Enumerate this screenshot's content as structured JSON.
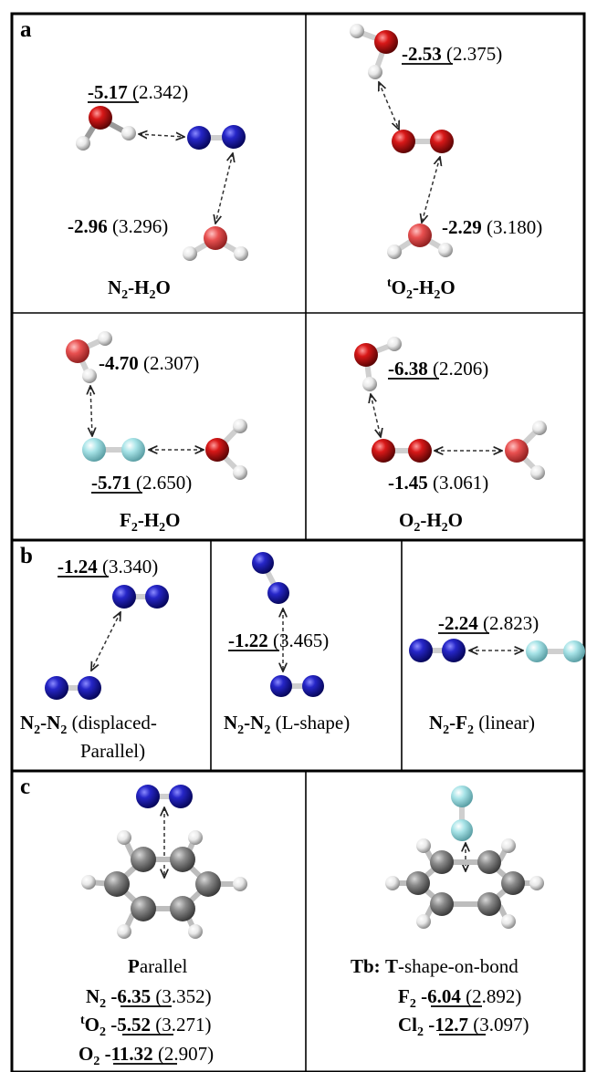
{
  "panels": {
    "a": {
      "label": "a",
      "cells": [
        {
          "name": "N₂-H₂O",
          "formula": {
            "parts": [
              "N",
              "2",
              "-H",
              "2",
              "O"
            ]
          },
          "top": {
            "energy": "-5.17",
            "distance": "(2.342)"
          },
          "bottom": {
            "energy": "-2.96",
            "distance": "(3.296)"
          }
        },
        {
          "name": "ᵗO₂-H₂O",
          "formula": {
            "pre": "t",
            "parts": [
              "O",
              "2",
              "-H",
              "2",
              "O"
            ]
          },
          "top": {
            "energy": "-2.53",
            "distance": "(2.375)"
          },
          "bottom": {
            "energy": "-2.29",
            "distance": "(3.180)"
          }
        },
        {
          "name": "F₂-H₂O",
          "formula": {
            "parts": [
              "F",
              "2",
              "-H",
              "2",
              "O"
            ]
          },
          "top": {
            "energy": "-4.70",
            "distance": "(2.307)"
          },
          "bottom": {
            "energy": "-5.71",
            "distance": "(2.650)"
          }
        },
        {
          "name": "O₂-H₂O",
          "formula": {
            "parts": [
              "O",
              "2",
              "-H",
              "2",
              "O"
            ]
          },
          "top": {
            "energy": "-6.38",
            "distance": "(2.206)"
          },
          "bottom": {
            "energy": "-1.45",
            "distance": "(3.061)"
          }
        }
      ]
    },
    "b": {
      "label": "b",
      "cells": [
        {
          "formula": [
            "N",
            "2",
            "-N",
            "2"
          ],
          "desc_line1": " (displaced-",
          "desc_line2": "Parallel)",
          "energy": "-1.24",
          "distance": "(3.340)"
        },
        {
          "formula": [
            "N",
            "2",
            "-N",
            "2"
          ],
          "desc": " (L-shape)",
          "energy": "-1.22",
          "distance": "(3.465)"
        },
        {
          "formula": [
            "N",
            "2",
            "-F",
            "2"
          ],
          "desc": " (linear)",
          "energy": "-2.24",
          "distance": "(2.823)"
        }
      ]
    },
    "c": {
      "label": "c",
      "left": {
        "title_bold": "P",
        "title_rest": "arallel",
        "rows": [
          {
            "sup": "",
            "mol": "N",
            "sub": "2",
            "energy": "-6.35",
            "distance": "(3.352)"
          },
          {
            "sup": "t",
            "mol": "O",
            "sub": "2",
            "energy": "-5.52",
            "distance": "(3.271)"
          },
          {
            "sup": "",
            "mol": "O",
            "sub": "2",
            "energy": "-11.32",
            "distance": "(2.907)"
          }
        ]
      },
      "right": {
        "title_prefix": "Tb:",
        "title_bold": "T",
        "title_rest": "-shape-on-bond",
        "rows": [
          {
            "mol": "F",
            "sub": "2",
            "energy": "-6.04",
            "distance": "(2.892)"
          },
          {
            "mol": "Cl",
            "sub": "2",
            "energy": "-12.7",
            "distance": "(3.097)"
          }
        ]
      }
    }
  },
  "colors": {
    "nitrogen": "#1a1aa8",
    "oxygen": "#c81414",
    "fluorine": "#9fdde0",
    "hydrogen": "#ececec",
    "carbon": "#7a7a7a"
  }
}
